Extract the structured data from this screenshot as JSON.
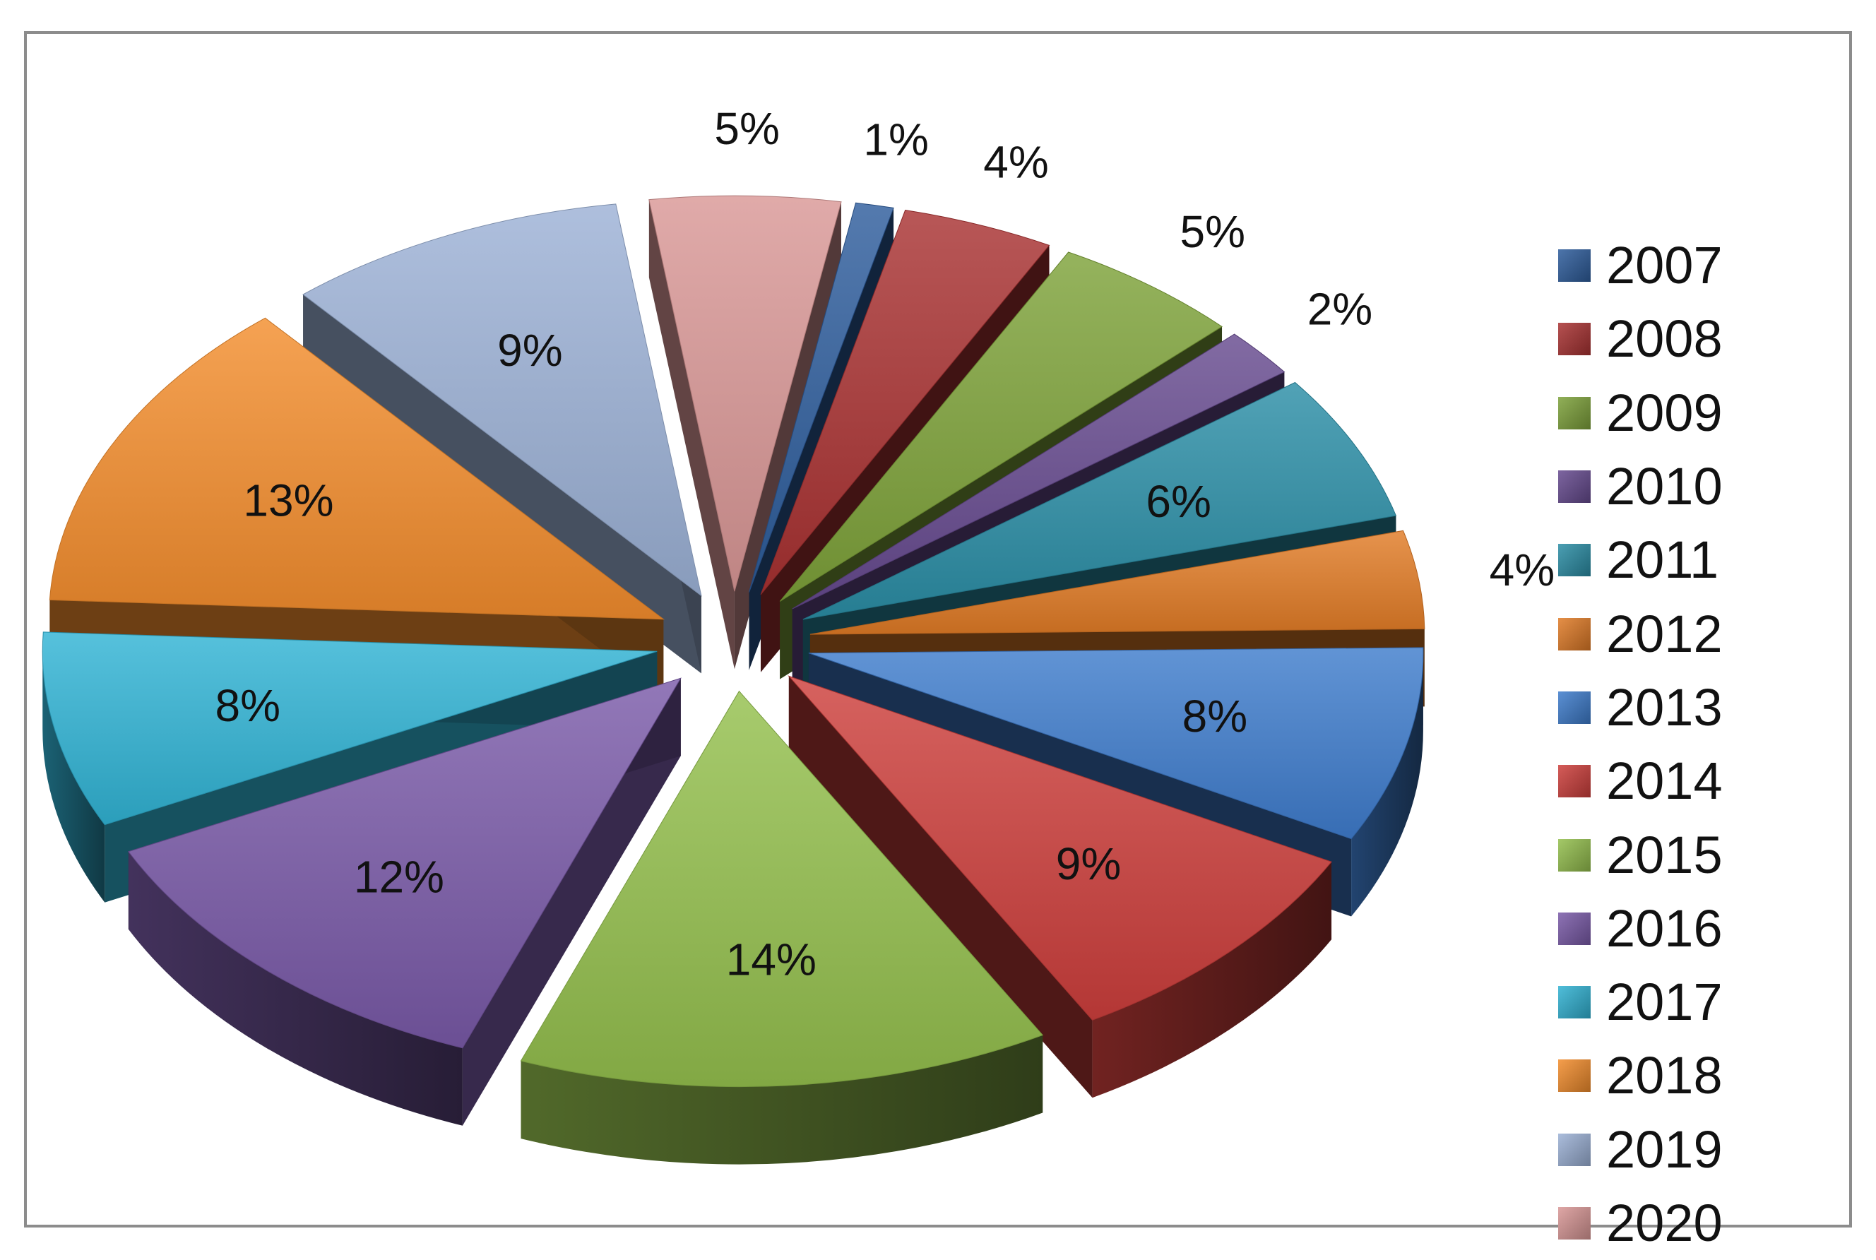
{
  "chart_data": {
    "type": "pie",
    "variant": "exploded-3d",
    "title": "",
    "legend_position": "right",
    "slices": [
      {
        "label": "2007",
        "value": 1,
        "display": "1%",
        "color": "#2e5d9c"
      },
      {
        "label": "2008",
        "value": 4,
        "display": "4%",
        "color": "#a93232"
      },
      {
        "label": "2009",
        "value": 5,
        "display": "5%",
        "color": "#7ea23a"
      },
      {
        "label": "2010",
        "value": 2,
        "display": "2%",
        "color": "#664a8f"
      },
      {
        "label": "2011",
        "value": 6,
        "display": "6%",
        "color": "#2b8ea6"
      },
      {
        "label": "2012",
        "value": 4,
        "display": "4%",
        "color": "#e07b26"
      },
      {
        "label": "2013",
        "value": 8,
        "display": "8%",
        "color": "#3e7ccc"
      },
      {
        "label": "2014",
        "value": 9,
        "display": "9%",
        "color": "#cd3f3c"
      },
      {
        "label": "2015",
        "value": 14,
        "display": "14%",
        "color": "#94bf4d"
      },
      {
        "label": "2016",
        "value": 12,
        "display": "12%",
        "color": "#7a5aa8"
      },
      {
        "label": "2017",
        "value": 8,
        "display": "8%",
        "color": "#31b3d4"
      },
      {
        "label": "2018",
        "value": 13,
        "display": "13%",
        "color": "#f38d2d"
      },
      {
        "label": "2019",
        "value": 9,
        "display": "9%",
        "color": "#9cb1d6"
      },
      {
        "label": "2020",
        "value": 5,
        "display": "5%",
        "color": "#d99796"
      }
    ]
  }
}
